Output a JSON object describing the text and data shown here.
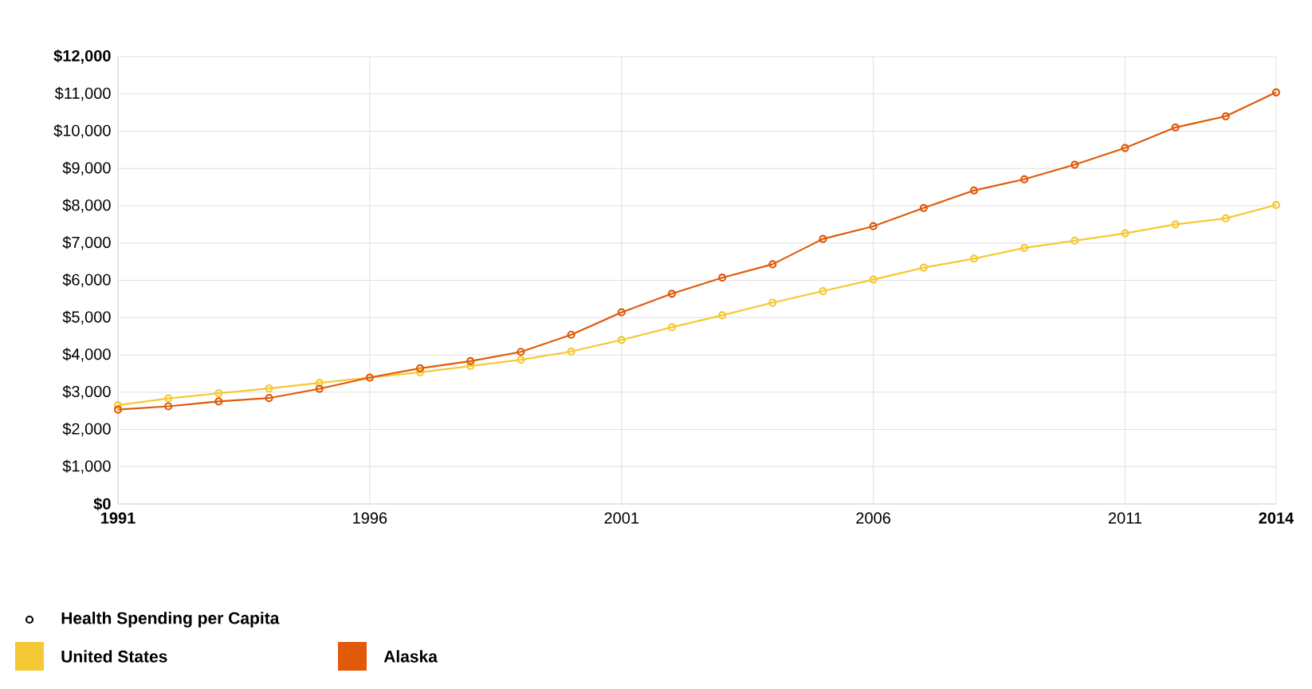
{
  "chart_data": {
    "type": "line",
    "x": [
      1991,
      1992,
      1993,
      1994,
      1995,
      1996,
      1997,
      1998,
      1999,
      2000,
      2001,
      2002,
      2003,
      2004,
      2005,
      2006,
      2007,
      2008,
      2009,
      2010,
      2011,
      2012,
      2013,
      2014
    ],
    "series": [
      {
        "name": "United States",
        "color": "#f5c935",
        "values": [
          2650,
          2830,
          2970,
          3100,
          3250,
          3390,
          3530,
          3700,
          3870,
          4090,
          4400,
          4740,
          5060,
          5400,
          5710,
          6020,
          6340,
          6580,
          6870,
          7060,
          7260,
          7500,
          7660,
          8020
        ]
      },
      {
        "name": "Alaska",
        "color": "#e05a0a",
        "values": [
          2530,
          2620,
          2750,
          2840,
          3090,
          3390,
          3640,
          3830,
          4080,
          4540,
          5140,
          5640,
          6070,
          6430,
          7110,
          7450,
          7940,
          8410,
          8710,
          9100,
          9550,
          10100,
          10400,
          11040
        ]
      }
    ],
    "legend_title": "Health Spending per Capita",
    "xlim": [
      1991,
      2014
    ],
    "xticks": [
      1991,
      1996,
      2001,
      2006,
      2011,
      2014
    ],
    "ylim": [
      0,
      12000
    ],
    "yticks": [
      {
        "value": 0,
        "label": "$0"
      },
      {
        "value": 1000,
        "label": "$1,000"
      },
      {
        "value": 2000,
        "label": "$2,000"
      },
      {
        "value": 3000,
        "label": "$3,000"
      },
      {
        "value": 4000,
        "label": "$4,000"
      },
      {
        "value": 5000,
        "label": "$5,000"
      },
      {
        "value": 6000,
        "label": "$6,000"
      },
      {
        "value": 7000,
        "label": "$7,000"
      },
      {
        "value": 8000,
        "label": "$8,000"
      },
      {
        "value": 9000,
        "label": "$9,000"
      },
      {
        "value": 10000,
        "label": "$10,000"
      },
      {
        "value": 11000,
        "label": "$11,000"
      },
      {
        "value": 12000,
        "label": "$12,000"
      }
    ],
    "grid": true,
    "legend": "bottom left",
    "marker": "circle",
    "line_style": "solid"
  }
}
